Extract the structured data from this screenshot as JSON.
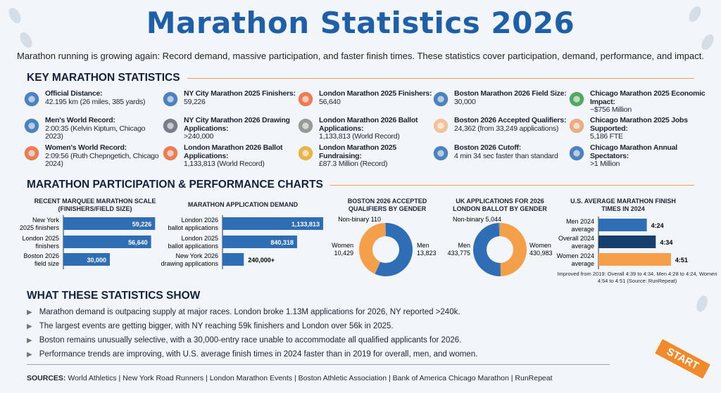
{
  "title": "Marathon Statistics 2026",
  "subtitle": "Marathon running is growing again: Record demand, massive participation, and faster finish times. These statistics cover participation, demand, performance, and impact.",
  "key_section": {
    "heading": "KEY MARATHON STATISTICS",
    "items": [
      {
        "icon": "running-shoe-icon",
        "label": "Official Distance:",
        "value": "42.195 km (26 miles, 385 yards)",
        "color": "#2f6db5"
      },
      {
        "icon": "stopwatch-icon",
        "label": "Men's World Record:",
        "value": "2:00:35 (Kelvin Kiptum, Chicago 2023)",
        "color": "#2f6db5"
      },
      {
        "icon": "runner-icon",
        "label": "Women's World Record:",
        "value": "2:09:56 (Ruth Chepngetich, Chicago 2024)",
        "color": "#e8683a"
      },
      {
        "icon": "crowd-icon",
        "label": "NY City Marathon 2025 Finishers:",
        "value": "59,226",
        "color": "#2f6db5"
      },
      {
        "icon": "document-icon",
        "label": "NY City Marathon 2026 Drawing Applications:",
        "value": ">240,000",
        "color": "#667"
      },
      {
        "icon": "crowd-icon",
        "label": "London Marathon 2026 Ballot Applications:",
        "value": "1,133,813 (World Record)",
        "color": "#e8683a"
      },
      {
        "icon": "crowd-icon",
        "label": "London Marathon 2025 Finishers:",
        "value": "56,640",
        "color": "#e8683a"
      },
      {
        "icon": "paper-stack-icon",
        "label": "London Marathon 2026 Ballot Applications:",
        "value": "1,133,813 (World Record)",
        "color": "#888"
      },
      {
        "icon": "coins-heart-icon",
        "label": "London Marathon 2025 Fundraising:",
        "value": "£87.3 Million (Record)",
        "color": "#e8a82c"
      },
      {
        "icon": "city-skyline-icon",
        "label": "Boston Marathon 2026 Field Size:",
        "value": "30,000",
        "color": "#2f6db5"
      },
      {
        "icon": "thumbs-up-icon",
        "label": "Boston 2026 Accepted Qualifiers:",
        "value": "24,362 (from 33,249 applications)",
        "color": "#f2b98a"
      },
      {
        "icon": "clock-icon",
        "label": "Boston 2026 Cutoff:",
        "value": "4 min 34 sec faster than standard",
        "color": "#2f6db5"
      },
      {
        "icon": "money-growth-icon",
        "label": "Chicago Marathon 2025 Economic Impact:",
        "value": "~$756 Million",
        "color": "#3a9a4a"
      },
      {
        "icon": "handshake-icon",
        "label": "Chicago Marathon 2025 Jobs Supported:",
        "value": "5,186 FTE",
        "color": "#e8a070"
      },
      {
        "icon": "spectators-icon",
        "label": "Chicago Marathon Annual Spectators:",
        "value": ">1 Million",
        "color": "#2f6db5"
      }
    ]
  },
  "charts_section": {
    "heading": "MARATHON PARTICIPATION & PERFORMANCE CHARTS"
  },
  "chart_data": [
    {
      "type": "bar",
      "orientation": "horizontal",
      "title": "RECENT MARQUEE MARATHON SCALE (FINISHERS/FIELD SIZE)",
      "categories": [
        "New York 2025 finishers",
        "London 2025 finishers",
        "Boston 2026 field size"
      ],
      "values": [
        59226,
        56640,
        30000
      ],
      "labels": [
        "59,226",
        "56,640",
        "30,000"
      ],
      "color": "#2f6db5",
      "xlim": [
        0,
        60000
      ]
    },
    {
      "type": "bar",
      "orientation": "horizontal",
      "title": "MARATHON APPLICATION DEMAND",
      "categories": [
        "London 2026 ballot applications",
        "London 2025 ballot applications",
        "New York 2026 drawing applications"
      ],
      "values": [
        1133813,
        840318,
        240000
      ],
      "labels": [
        "1,133,813",
        "840,318",
        "240,000+"
      ],
      "color": "#2f6db5",
      "xlim": [
        0,
        1150000
      ]
    },
    {
      "type": "pie",
      "donut": true,
      "title": "BOSTON 2026 ACCEPTED QUALIFIERS BY GENDER",
      "slices": [
        {
          "name": "Men",
          "value": 13823,
          "label": "13,823",
          "color": "#2f6db5"
        },
        {
          "name": "Women",
          "value": 10429,
          "label": "10,429",
          "color": "#f4a04a"
        },
        {
          "name": "Non-binary",
          "value": 110,
          "label": "110",
          "color": "#8a9bb0"
        }
      ]
    },
    {
      "type": "pie",
      "donut": true,
      "title": "UK APPLICATIONS FOR 2026 LONDON BALLOT BY GENDER",
      "slices": [
        {
          "name": "Women",
          "value": 430983,
          "label": "430,983",
          "color": "#f4a04a"
        },
        {
          "name": "Men",
          "value": 433775,
          "label": "433,775",
          "color": "#2f6db5"
        },
        {
          "name": "Non-binary",
          "value": 5044,
          "label": "5,044",
          "color": "#8a9bb0"
        }
      ]
    },
    {
      "type": "bar",
      "orientation": "horizontal",
      "title": "U.S. AVERAGE MARATHON FINISH TIMES IN 2024",
      "categories": [
        "Men 2024 average",
        "Overall 2024 average",
        "Women 2024 average"
      ],
      "values": [
        264,
        274,
        291
      ],
      "labels": [
        "4:24",
        "4:34",
        "4:51"
      ],
      "colors": [
        "#2f6db5",
        "#173f6e",
        "#f4a04a"
      ],
      "xlim": [
        210,
        295
      ],
      "note": "Improved from 2019: Overall 4:39 to 4:34, Men 4:28 to 4:24, Women 4:54 to 4:51 (Source: RunRepeat)"
    }
  ],
  "insights": {
    "heading": "WHAT THESE STATISTICS SHOW",
    "bullets": [
      "Marathon demand is outpacing supply at major races. London broke 1.13M applications for 2026, NY reported >240k.",
      "The largest events are getting bigger, with NY reaching 59k finishers and London over 56k in 2025.",
      "Boston remains unusually selective, with a 30,000-entry race unable to accommodate all qualified applicants for 2026.",
      "Performance trends are improving, with U.S. average finish times in 2024 faster than in 2019 for overall, men, and women."
    ]
  },
  "sources": {
    "label": "SOURCES:",
    "text": "World Athletics | New York Road Runners | London Marathon Events | Boston Athletic Association | Bank of America Chicago Marathon | RunRepeat"
  },
  "start_sign": "START"
}
